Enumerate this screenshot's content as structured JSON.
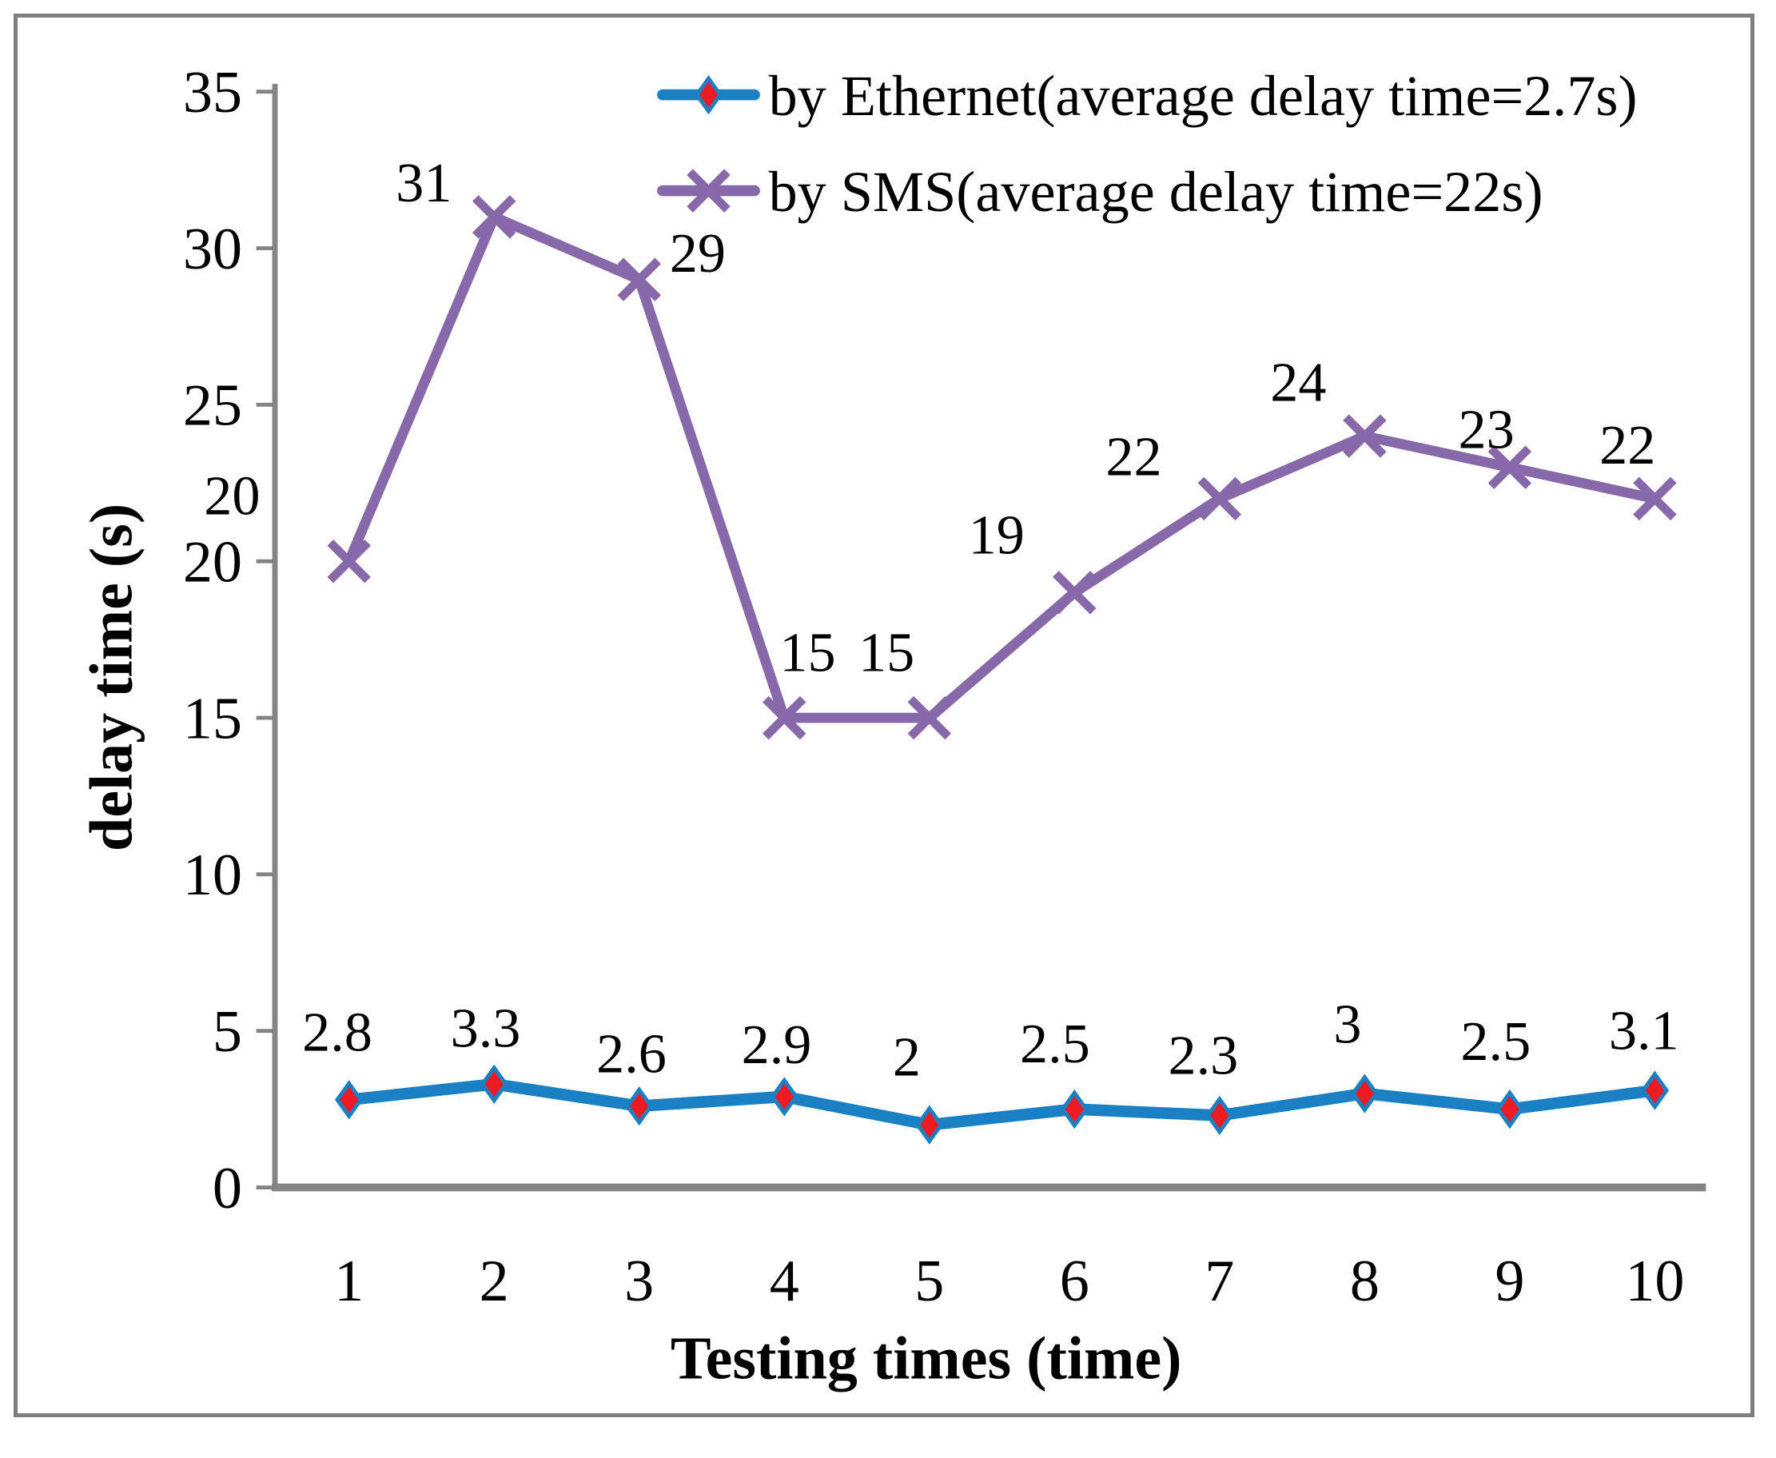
{
  "figure": {
    "background": "#FFFFFF",
    "border_color": "#7F7F7F",
    "axis_color": "#848484"
  },
  "chart_data": {
    "type": "line",
    "title": "",
    "xlabel": "Testing times (time)",
    "ylabel": "delay time (s)",
    "categories": [
      "1",
      "2",
      "3",
      "4",
      "5",
      "6",
      "7",
      "8",
      "9",
      "10"
    ],
    "x": [
      1,
      2,
      3,
      4,
      5,
      6,
      7,
      8,
      9,
      10
    ],
    "y_ticks": [
      0,
      5,
      10,
      15,
      20,
      25,
      30,
      35
    ],
    "y_tick_labels": [
      "0",
      "5",
      "10",
      "15",
      "20",
      "25",
      "30",
      "35"
    ],
    "ylim": [
      0,
      35
    ],
    "grid": false,
    "legend_position": "top-right-inside",
    "series": [
      {
        "name": "by Ethernet(average delay time=2.7s)",
        "values": [
          2.8,
          3.3,
          2.6,
          2.9,
          2,
          2.5,
          2.3,
          3,
          2.5,
          3.1
        ],
        "labels": [
          "2.8",
          "3.3",
          "2.6",
          "2.9",
          "2",
          "2.5",
          "2.3",
          "3",
          "2.5",
          "3.1"
        ],
        "color": "#1A80C4",
        "marker": "diamond",
        "marker_fill": "#ED1C24",
        "marker_outline": "#1A80C4"
      },
      {
        "name": "by SMS(average delay time=22s)",
        "values": [
          20,
          31,
          29,
          15,
          15,
          19,
          22,
          24,
          23,
          22
        ],
        "labels": [
          "20",
          "31",
          "29",
          "15",
          "15",
          "19",
          "22",
          "24",
          "23",
          "22"
        ],
        "color": "#8768A8",
        "marker": "x"
      }
    ]
  }
}
